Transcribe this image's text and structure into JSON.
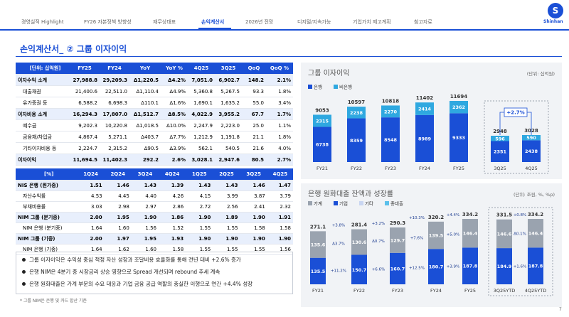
{
  "nav": {
    "tabs": [
      "경영실적 Highlight",
      "FY26 자본정책 방향성",
      "재무상태표",
      "손익계산서",
      "2026년 전망",
      "디지털/지속가능",
      "기업가치 제고계획",
      "참고자료"
    ],
    "logo": "Shinhan"
  },
  "section_title": "손익계산서_ ② 그룹 이자이익",
  "income_table": {
    "header": [
      "[단위: 십억원]",
      "FY25",
      "FY24",
      "YoY",
      "YoY %",
      "4Q25",
      "3Q25",
      "QoQ",
      "QoQ %"
    ],
    "rows": [
      [
        "이자수익 소계",
        "27,988.8",
        "29,209.3",
        "Δ1,220.5",
        "Δ4.2%",
        "7,051.0",
        "6,902.7",
        "148.2",
        "2.1%"
      ],
      [
        "대출채권",
        "21,400.6",
        "22,511.0",
        "Δ1,110.4",
        "Δ4.9%",
        "5,360.8",
        "5,267.5",
        "93.3",
        "1.8%"
      ],
      [
        "유가증권 등",
        "6,588.2",
        "6,698.3",
        "Δ110.1",
        "Δ1.6%",
        "1,690.1",
        "1,635.2",
        "55.0",
        "3.4%"
      ],
      [
        "이자비용 소계",
        "16,294.3",
        "17,807.0",
        "Δ1,512.7",
        "Δ8.5%",
        "4,022.9",
        "3,955.2",
        "67.7",
        "1.7%"
      ],
      [
        "예수금",
        "9,202.3",
        "10,220.8",
        "Δ1,018.5",
        "Δ10.0%",
        "2,247.9",
        "2,223.0",
        "25.0",
        "1.1%"
      ],
      [
        "금융채/차입금",
        "4,867.4",
        "5,271.1",
        "Δ403.7",
        "Δ7.7%",
        "1,212.9",
        "1,191.8",
        "21.1",
        "1.8%"
      ],
      [
        "기타이자비용 등",
        "2,224.7",
        "2,315.2",
        "Δ90.5",
        "Δ3.9%",
        "562.1",
        "540.5",
        "21.6",
        "4.0%"
      ],
      [
        "이자이익",
        "11,694.5",
        "11,402.3",
        "292.2",
        "2.6%",
        "3,028.1",
        "2,947.6",
        "80.5",
        "2.7%"
      ]
    ]
  },
  "margin_table": {
    "header": [
      "[%]",
      "1Q24",
      "2Q24",
      "3Q24",
      "4Q24",
      "1Q25",
      "2Q25",
      "3Q25",
      "4Q25"
    ],
    "rows": [
      [
        "NIS 은행 (원가중)",
        "1.51",
        "1.46",
        "1.43",
        "1.39",
        "1.43",
        "1.43",
        "1.46",
        "1.47"
      ],
      [
        "자산수익률",
        "4.53",
        "4.45",
        "4.40",
        "4.26",
        "4.15",
        "3.99",
        "3.87",
        "3.79"
      ],
      [
        "부채비용률",
        "3.03",
        "2.98",
        "2.97",
        "2.86",
        "2.72",
        "2.56",
        "2.41",
        "2.32"
      ],
      [
        "NIM 그룹 (분기중)",
        "2.00",
        "1.95",
        "1.90",
        "1.86",
        "1.90",
        "1.89",
        "1.90",
        "1.91"
      ],
      [
        "NIM 은행 (분기중)",
        "1.64",
        "1.60",
        "1.56",
        "1.52",
        "1.55",
        "1.55",
        "1.58",
        "1.58"
      ],
      [
        "NIM 그룹 (기중)",
        "2.00",
        "1.97",
        "1.95",
        "1.93",
        "1.90",
        "1.90",
        "1.90",
        "1.90"
      ],
      [
        "NIM 은행 (기중)",
        "1.64",
        "1.62",
        "1.60",
        "1.58",
        "1.55",
        "1.55",
        "1.55",
        "1.56"
      ]
    ]
  },
  "bullets": [
    "그룹 이자이익은 수익성 중심 적정 자산 성장과 조달비용 효율화를 통해 전년 대비 +2.6% 증가",
    "은행 NIM은 4분기 중 시장금리 상승 영향으로 Spread 개선되며 rebound 추세 계속",
    "은행 원화대출은 가계 부문의 수요 대응과 기업 금융 공급 역할의 충실한 이행으로 연간 +4.4% 성장"
  ],
  "footnote": "* 그룹 NIM은 은행 및 카드 합산 기준",
  "page_number": "7",
  "chart_data": [
    {
      "type": "stacked-bar",
      "title": "그룹 이자이익",
      "unit": "(단위: 십억원)",
      "categories": [
        "FY21",
        "FY22",
        "FY23",
        "FY24",
        "FY25"
      ],
      "series": [
        {
          "name": "은행",
          "color": "#1a4fd6",
          "values": [
            6738,
            8359,
            8548,
            8989,
            9333
          ]
        },
        {
          "name": "비은행",
          "color": "#2fa8e0",
          "values": [
            2315,
            2238,
            2270,
            2414,
            2362
          ]
        }
      ],
      "totals": [
        9053,
        10597,
        10818,
        11402,
        11694
      ],
      "inset": {
        "categories": [
          "3Q25",
          "4Q25"
        ],
        "series": [
          {
            "values": [
              2351,
              2438
            ]
          },
          {
            "values": [
              596,
              590
            ]
          }
        ],
        "totals": [
          2948,
          3028
        ],
        "annotation": "+2.7%"
      }
    },
    {
      "type": "stacked-bar",
      "title": "은행 원화대출 잔액과 성장률",
      "unit": "(단위: 조원, %, %p)",
      "categories": [
        "FY21",
        "FY22",
        "FY23",
        "FY24",
        "FY25"
      ],
      "series": [
        {
          "name": "가계",
          "color": "#9aa3af",
          "values": [
            135.6,
            130.6,
            129.7,
            139.5,
            146.4
          ],
          "growth_labels": [
            null,
            "Δ3.7%",
            "Δ0.7%",
            "+7.6%",
            "+5.0%"
          ]
        },
        {
          "name": "기업",
          "color": "#1a4fd6",
          "values": [
            135.5,
            150.7,
            160.7,
            180.7,
            187.8
          ],
          "growth_labels": [
            null,
            "+11.2%",
            "+6.6%",
            "+12.5%",
            "+3.9%"
          ]
        }
      ],
      "other_legend": [
        {
          "name": "기타",
          "color": "#c9d6f2"
        },
        {
          "name": "총대출",
          "color": "#5bc0eb"
        }
      ],
      "totals": [
        271.1,
        281.4,
        290.3,
        320.2,
        334.2
      ],
      "total_growth_labels": [
        null,
        "+3.8%",
        "+3.2%",
        "+10.3%",
        "+4.4%"
      ],
      "inset": {
        "categories": [
          "3Q25YTD",
          "4Q25YTD"
        ],
        "series": [
          {
            "values": [
              146.6,
              146.4
            ],
            "growth_labels": [
              null,
              "Δ0.1%"
            ]
          },
          {
            "values": [
              184.9,
              187.8
            ],
            "growth_labels": [
              null,
              "+1.6%"
            ]
          }
        ],
        "totals": [
          331.5,
          334.2
        ],
        "total_growth_labels": [
          null,
          "+0.8%"
        ]
      }
    }
  ]
}
